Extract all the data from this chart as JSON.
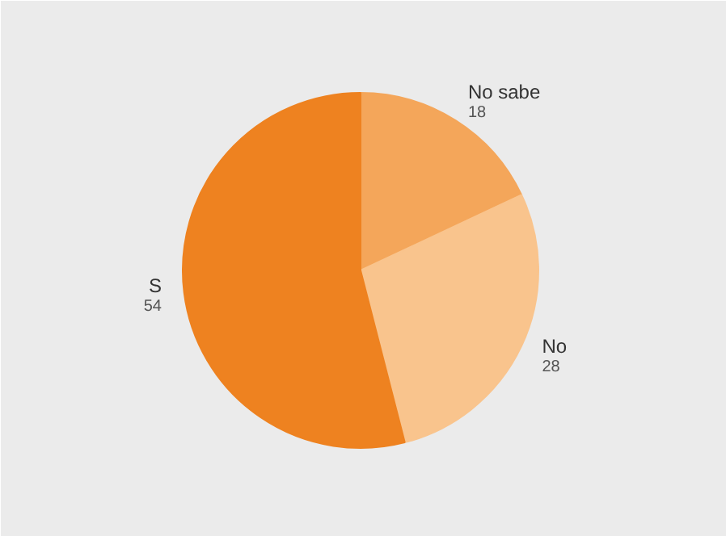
{
  "chart_data": {
    "type": "pie",
    "categories": [
      "No sabe",
      "No",
      "S"
    ],
    "values": [
      18,
      28,
      54
    ],
    "colors": [
      "#f4a65a",
      "#f9c48d",
      "#ee8220"
    ],
    "data_labels": true
  }
}
